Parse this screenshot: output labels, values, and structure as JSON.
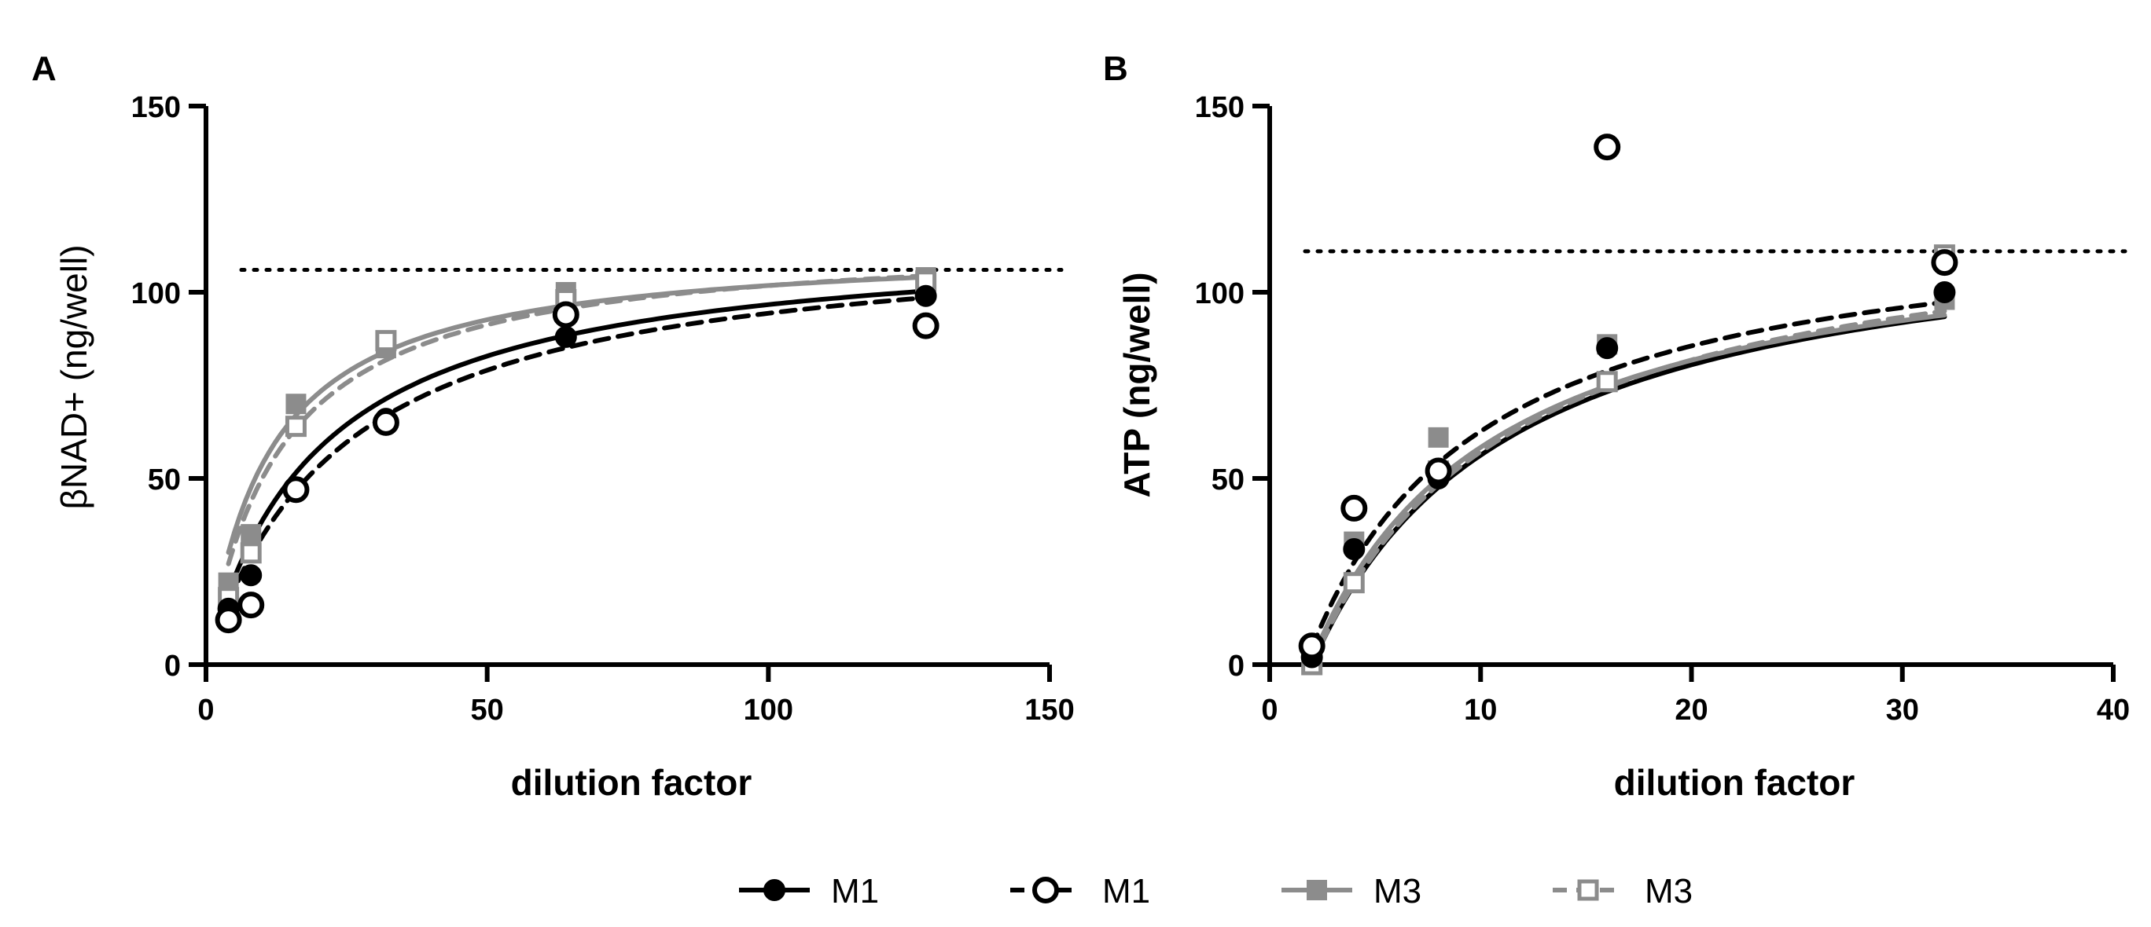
{
  "colors": {
    "black": "#000000",
    "gray": "#8c8c8c",
    "background": "#ffffff"
  },
  "legend": [
    {
      "label": "M1",
      "color": "#000000",
      "marker": "filled-circle",
      "line": "solid"
    },
    {
      "label": "M1",
      "color": "#000000",
      "marker": "open-circle",
      "line": "dashed"
    },
    {
      "label": "M3",
      "color": "#8c8c8c",
      "marker": "filled-square",
      "line": "solid"
    },
    {
      "label": "M3",
      "color": "#8c8c8c",
      "marker": "open-square",
      "line": "dashed"
    }
  ],
  "chart_data": [
    {
      "panel": "A",
      "type": "scatter",
      "title": "",
      "xlabel": "dilution factor",
      "ylabel": "βNAD+ (ng/well)",
      "xlim": [
        0,
        150
      ],
      "ylim": [
        0,
        150
      ],
      "xticks": [
        0,
        50,
        100,
        150
      ],
      "yticks": [
        0,
        50,
        100,
        150
      ],
      "reference_line": {
        "y": 106,
        "style": "dotted"
      },
      "series": [
        {
          "name": "M1",
          "marker": "filled-circle",
          "color": "#000000",
          "fit": "solid",
          "x": [
            4,
            8,
            16,
            32,
            64,
            128
          ],
          "y": [
            15,
            24,
            47,
            66,
            88,
            99
          ],
          "fit_model": {
            "ymax": 116,
            "k": 20
          }
        },
        {
          "name": "M1",
          "marker": "open-circle",
          "color": "#000000",
          "fit": "dashed",
          "x": [
            4,
            8,
            16,
            32,
            64,
            128
          ],
          "y": [
            12,
            16,
            47,
            65,
            94,
            91
          ],
          "fit_model": {
            "ymax": 117,
            "k": 24
          }
        },
        {
          "name": "M3",
          "marker": "filled-square",
          "color": "#8c8c8c",
          "fit": "solid",
          "x": [
            4,
            8,
            16,
            32,
            64,
            128
          ],
          "y": [
            22,
            35,
            70,
            85,
            100,
            104
          ],
          "fit_model": {
            "ymax": 113,
            "k": 11
          }
        },
        {
          "name": "M3",
          "marker": "open-square",
          "color": "#8c8c8c",
          "fit": "dashed",
          "x": [
            4,
            8,
            16,
            32,
            64,
            128
          ],
          "y": [
            18,
            30,
            64,
            87,
            98,
            103
          ],
          "fit_model": {
            "ymax": 115,
            "k": 13
          }
        }
      ]
    },
    {
      "panel": "B",
      "type": "scatter",
      "title": "",
      "xlabel": "dilution factor",
      "ylabel": "ATP (ng/well)",
      "xlim": [
        0,
        40
      ],
      "ylim": [
        0,
        150
      ],
      "xticks": [
        0,
        10,
        20,
        30,
        40
      ],
      "yticks": [
        0,
        50,
        100,
        150
      ],
      "reference_line": {
        "y": 111,
        "style": "dotted"
      },
      "series": [
        {
          "name": "M1",
          "marker": "filled-circle",
          "color": "#000000",
          "fit": "solid",
          "x": [
            2,
            4,
            8,
            16,
            32
          ],
          "y": [
            2,
            31,
            50,
            85,
            100
          ],
          "fit_model": {
            "ymax": 123,
            "k": 9.5,
            "x0": 2
          }
        },
        {
          "name": "M1",
          "marker": "open-circle",
          "color": "#000000",
          "fit": "dashed",
          "x": [
            2,
            4,
            8,
            16,
            32
          ],
          "y": [
            5,
            42,
            52,
            139,
            108
          ],
          "fit_model": {
            "ymax": 123,
            "k": 8,
            "x0": 1.7
          }
        },
        {
          "name": "M3",
          "marker": "filled-square",
          "color": "#8c8c8c",
          "fit": "solid",
          "x": [
            2,
            4,
            8,
            16,
            32
          ],
          "y": [
            1,
            33,
            61,
            86,
            98
          ],
          "fit_model": {
            "ymax": 121,
            "k": 8.7,
            "x0": 1.9
          }
        },
        {
          "name": "M3",
          "marker": "open-square",
          "color": "#8c8c8c",
          "fit": "dashed",
          "x": [
            2,
            4,
            8,
            16,
            32
          ],
          "y": [
            0,
            22,
            52,
            76,
            110
          ],
          "fit_model": {
            "ymax": 125,
            "k": 9.5,
            "x0": 2
          }
        }
      ]
    }
  ]
}
